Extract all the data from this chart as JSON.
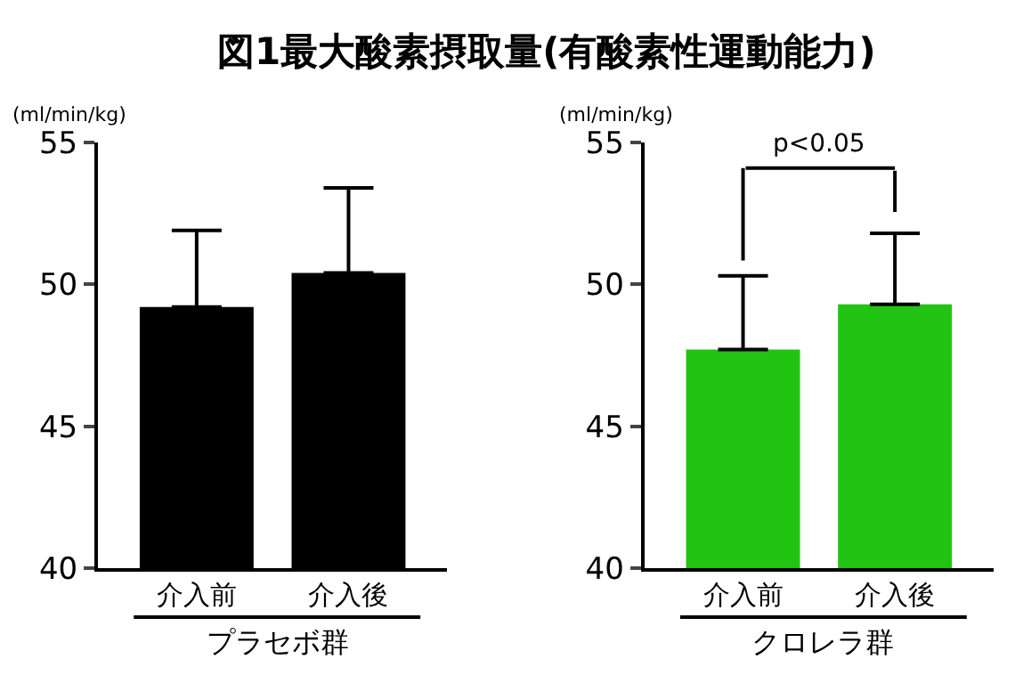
{
  "chart_data": [
    {
      "type": "bar",
      "title": "図1最大酸素摂取量(有酸素性運動能力)",
      "ylabel": "(ml/min/kg)",
      "xlabel": "プラセボ群",
      "categories": [
        "介入前",
        "介入後"
      ],
      "series": [
        {
          "color": "#000000",
          "values": [
            49.2,
            50.4
          ],
          "errors": [
            [
              49.2,
              51.9
            ],
            [
              50.4,
              53.4
            ]
          ]
        }
      ],
      "ylim": [
        40,
        55
      ],
      "yticks": [
        40,
        45,
        50,
        55
      ]
    },
    {
      "type": "bar",
      "ylabel": "(ml/min/kg)",
      "xlabel": "クロレラ群",
      "categories": [
        "介入前",
        "介入後"
      ],
      "series": [
        {
          "color": "#22c414",
          "values": [
            47.7,
            49.3
          ],
          "errors": [
            [
              47.7,
              50.3
            ],
            [
              49.3,
              51.8
            ]
          ]
        }
      ],
      "ylim": [
        40,
        55
      ],
      "yticks": [
        40,
        45,
        50,
        55
      ],
      "annotations": [
        "p<0.05"
      ]
    }
  ]
}
